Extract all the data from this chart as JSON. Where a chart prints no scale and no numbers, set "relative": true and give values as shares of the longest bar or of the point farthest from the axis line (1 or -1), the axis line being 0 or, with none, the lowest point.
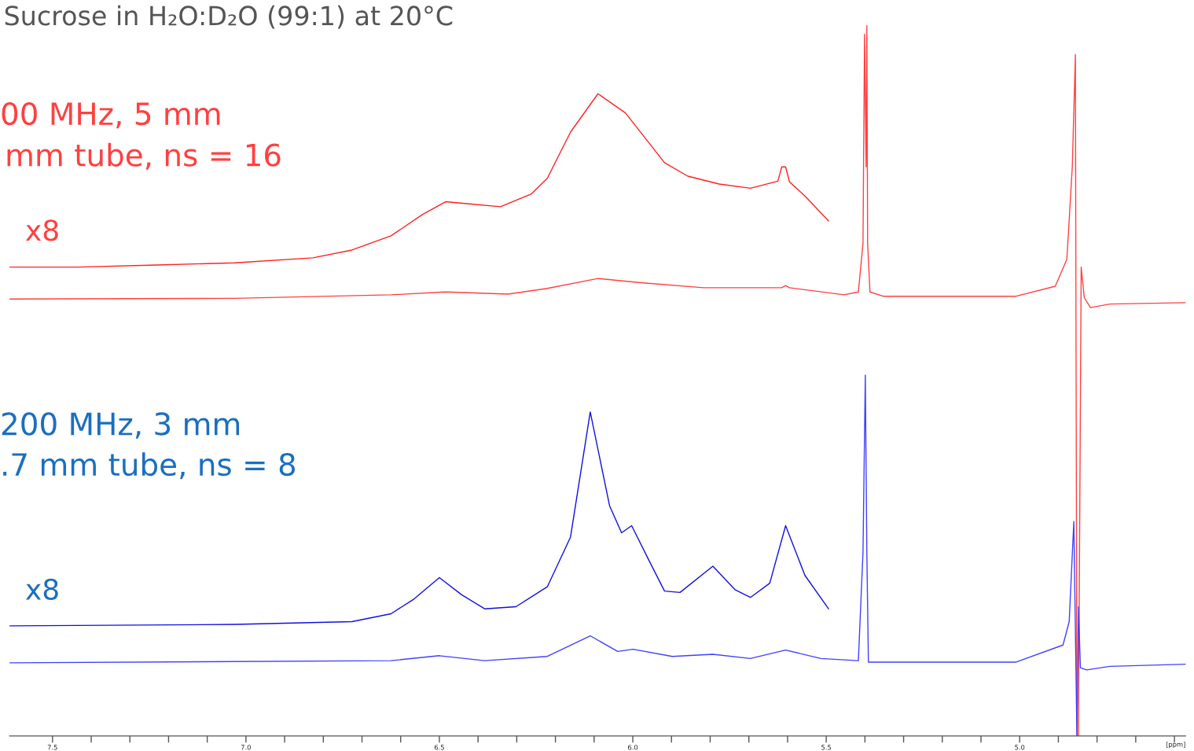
{
  "chart_data": {
    "type": "line",
    "title": "Sucrose in H₂O:D₂O (99:1) at 20°C",
    "xlabel": "[ppm]",
    "relative": true,
    "grid": false,
    "tick_labels": "x",
    "marker": "none",
    "line_style": "solid",
    "xlim": [
      7.611,
      4.571
    ],
    "xticks": [
      {
        "value": 7.5,
        "label": "7.5"
      },
      {
        "value": 7.4,
        "label": null
      },
      {
        "value": 7.3,
        "label": null
      },
      {
        "value": 7.2,
        "label": null
      },
      {
        "value": 7.1,
        "label": null
      },
      {
        "value": 7.0,
        "label": "7.0"
      },
      {
        "value": 6.9,
        "label": null
      },
      {
        "value": 6.8,
        "label": null
      },
      {
        "value": 6.7,
        "label": null
      },
      {
        "value": 6.6,
        "label": null
      },
      {
        "value": 6.5,
        "label": "6.5"
      },
      {
        "value": 6.4,
        "label": null
      },
      {
        "value": 6.3,
        "label": null
      },
      {
        "value": 6.2,
        "label": null
      },
      {
        "value": 6.1,
        "label": null
      },
      {
        "value": 6.0,
        "label": "6.0"
      },
      {
        "value": 5.9,
        "label": null
      },
      {
        "value": 5.8,
        "label": null
      },
      {
        "value": 5.7,
        "label": null
      },
      {
        "value": 5.6,
        "label": null
      },
      {
        "value": 5.5,
        "label": "5.5"
      },
      {
        "value": 5.4,
        "label": null
      },
      {
        "value": 5.3,
        "label": null
      },
      {
        "value": 5.2,
        "label": null
      },
      {
        "value": 5.1,
        "label": null
      },
      {
        "value": 5.0,
        "label": "5.0"
      },
      {
        "value": 4.9,
        "label": null
      },
      {
        "value": 4.8,
        "label": null
      },
      {
        "value": 4.7,
        "label": null
      },
      {
        "value": 4.6,
        "label": null
      }
    ],
    "annotations": [
      "00 MHz, 5 mm",
      "mm tube, ns = 16",
      "x8",
      "200 MHz, 3 mm",
      ".7 mm tube, ns = 8",
      "x8"
    ],
    "series": [
      {
        "color": "#ff2020",
        "x": [
          7.611,
          7.433,
          7.231,
          7.029,
          6.827,
          6.726,
          6.625,
          6.544,
          6.484,
          6.423,
          6.342,
          6.262,
          6.221,
          6.161,
          6.09,
          6.019,
          5.918,
          5.858,
          5.777,
          5.696,
          5.625,
          5.615,
          5.605,
          5.595,
          5.555,
          5.494
        ],
        "values": [
          0.66,
          0.66,
          0.663,
          0.666,
          0.673,
          0.684,
          0.704,
          0.734,
          0.752,
          0.749,
          0.745,
          0.763,
          0.785,
          0.85,
          0.904,
          0.877,
          0.807,
          0.788,
          0.777,
          0.771,
          0.781,
          0.801,
          0.801,
          0.78,
          0.76,
          0.725
        ]
      },
      {
        "color": "#ff4040",
        "x": [
          7.611,
          7.029,
          6.625,
          6.484,
          6.322,
          6.221,
          6.09,
          5.979,
          5.817,
          5.615,
          5.605,
          5.595,
          5.454,
          5.417,
          5.405,
          5.401,
          5.397,
          5.395,
          5.393,
          5.387,
          5.353,
          5.009,
          4.908,
          4.878,
          4.864,
          4.856,
          4.852,
          4.848,
          4.841,
          4.833,
          4.817,
          4.767,
          4.571
        ],
        "values": [
          0.615,
          0.616,
          0.621,
          0.625,
          0.622,
          0.63,
          0.644,
          0.638,
          0.631,
          0.631,
          0.634,
          0.631,
          0.621,
          0.625,
          0.693,
          0.988,
          0.801,
          1.0,
          0.693,
          0.625,
          0.619,
          0.619,
          0.633,
          0.671,
          0.801,
          0.959,
          0.0,
          0.0,
          0.66,
          0.617,
          0.603,
          0.608,
          0.61
        ]
      },
      {
        "color": "#1010e0",
        "x": [
          7.611,
          7.029,
          6.726,
          6.625,
          6.565,
          6.5,
          6.443,
          6.383,
          6.302,
          6.221,
          6.161,
          6.11,
          6.06,
          6.029,
          6.003,
          5.959,
          5.918,
          5.878,
          5.793,
          5.736,
          5.696,
          5.646,
          5.605,
          5.555,
          5.494
        ],
        "values": [
          0.155,
          0.157,
          0.161,
          0.172,
          0.193,
          0.223,
          0.199,
          0.179,
          0.182,
          0.21,
          0.28,
          0.456,
          0.324,
          0.286,
          0.296,
          0.248,
          0.204,
          0.202,
          0.239,
          0.206,
          0.195,
          0.215,
          0.296,
          0.226,
          0.179
        ]
      },
      {
        "color": "#4040ff",
        "x": [
          7.611,
          6.625,
          6.5,
          6.383,
          6.221,
          6.11,
          6.039,
          5.999,
          5.898,
          5.793,
          5.696,
          5.605,
          5.514,
          5.417,
          5.405,
          5.399,
          5.395,
          5.391,
          5.009,
          4.888,
          4.872,
          4.86,
          4.856,
          4.852,
          4.848,
          4.843,
          4.827,
          4.767,
          4.571
        ],
        "values": [
          0.103,
          0.106,
          0.113,
          0.106,
          0.112,
          0.141,
          0.119,
          0.122,
          0.112,
          0.115,
          0.109,
          0.121,
          0.109,
          0.106,
          0.258,
          0.508,
          0.258,
          0.104,
          0.104,
          0.128,
          0.161,
          0.302,
          0.15,
          0.0,
          0.182,
          0.096,
          0.093,
          0.098,
          0.101
        ]
      }
    ]
  }
}
